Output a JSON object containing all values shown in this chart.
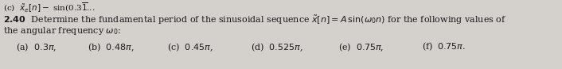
{
  "background_color": "#d4d0cc",
  "text_color": "#1a1a1a",
  "top_line": "(c)  $\\tilde{x}_e[n] = \\mathrm{sin}(0.3\\overline{1}...$",
  "main_bold": "2.40",
  "main_text": "  Determine the fundamental period of the sinusoidal sequence $\\tilde{x}[n] = A\\,\\mathrm{sin}(\\omega_0 n)$ for the following values of",
  "line2": "the angular frequency $\\omega_0$:",
  "line3a": "(a)  $0.3\\pi$,",
  "line3b": "(b)  $0.48\\pi$,",
  "line3c": "(c)  $0.45\\pi$,",
  "line3d": "(d)  $0.525\\pi$,",
  "line3e": "(e)  $0.75\\pi$,",
  "line3f": "(f)  $0.75\\pi$.",
  "font_size": 8.0,
  "font_size_top": 7.5
}
